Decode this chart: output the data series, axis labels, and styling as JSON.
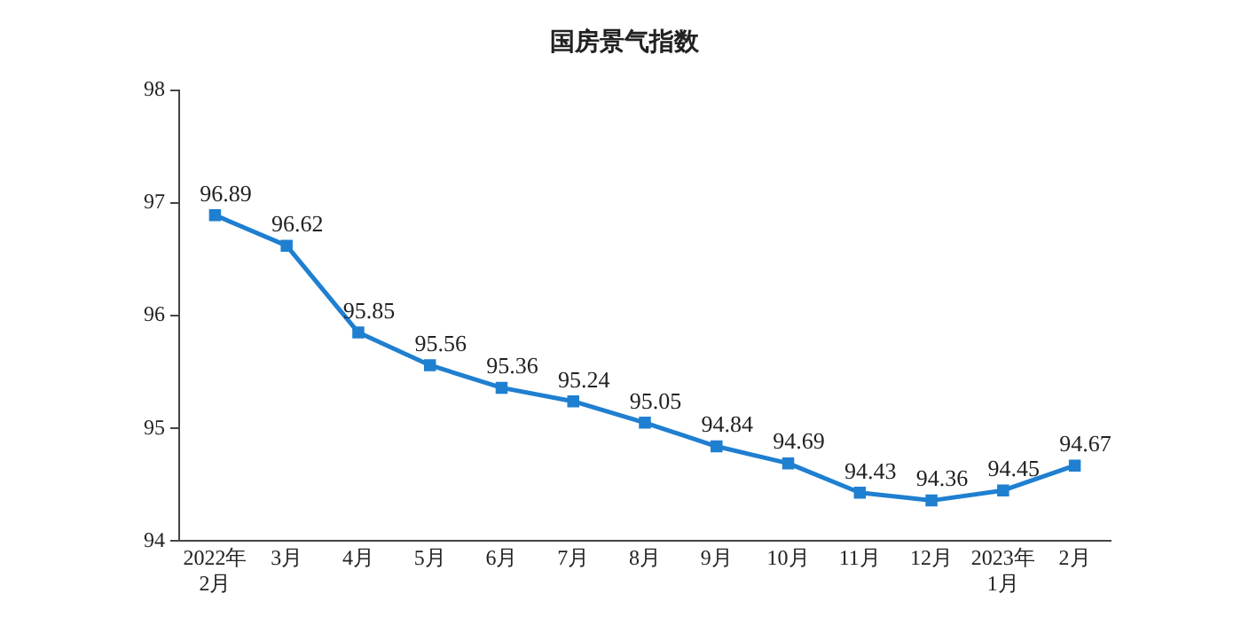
{
  "chart_data": {
    "type": "line",
    "title": "国房景气指数",
    "categories": [
      "2022年\n2月",
      "3月",
      "4月",
      "5月",
      "6月",
      "7月",
      "8月",
      "9月",
      "10月",
      "11月",
      "12月",
      "2023年\n1月",
      "2月"
    ],
    "series": [
      {
        "color": "#1f7fd0",
        "values": [
          96.89,
          96.62,
          95.85,
          95.56,
          95.36,
          95.24,
          95.05,
          94.84,
          94.69,
          94.43,
          94.36,
          94.45,
          94.67
        ]
      }
    ],
    "ylim": [
      94,
      98
    ],
    "yticks": [
      94,
      95,
      96,
      97,
      98
    ],
    "marker": "square",
    "data_labels": true,
    "legend": false
  }
}
